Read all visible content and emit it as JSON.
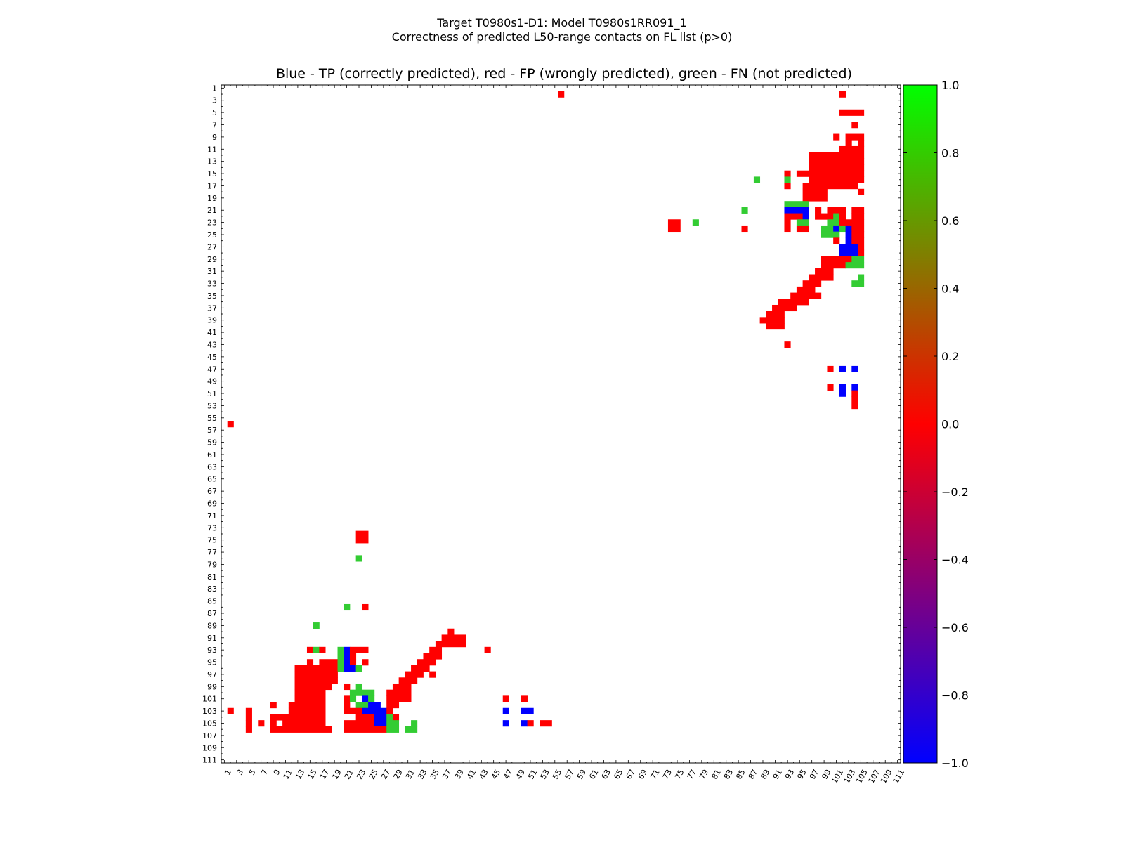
{
  "figure": {
    "suptitle_line1": "Target T0980s1-D1: Model T0980s1RR091_1",
    "suptitle_line2": "Correctness of predicted L50-range contacts on FL list (p>0)"
  },
  "chart_data": {
    "type": "heatmap",
    "title": "Blue - TP (correctly predicted), red - FP (wrongly predicted), green - FN (not predicted)",
    "xlabel": "",
    "ylabel": "",
    "n": 111,
    "x_ticks": [
      1,
      3,
      5,
      7,
      9,
      11,
      13,
      15,
      17,
      19,
      21,
      23,
      25,
      27,
      29,
      31,
      33,
      35,
      37,
      39,
      41,
      43,
      45,
      47,
      49,
      51,
      53,
      55,
      57,
      59,
      61,
      63,
      65,
      67,
      69,
      71,
      73,
      75,
      77,
      79,
      81,
      83,
      85,
      87,
      89,
      91,
      93,
      95,
      97,
      99,
      101,
      103,
      105,
      107,
      109,
      111
    ],
    "y_ticks": [
      1,
      3,
      5,
      7,
      9,
      11,
      13,
      15,
      17,
      19,
      21,
      23,
      25,
      27,
      29,
      31,
      33,
      35,
      37,
      39,
      41,
      43,
      45,
      47,
      49,
      51,
      53,
      55,
      57,
      59,
      61,
      63,
      65,
      67,
      69,
      71,
      73,
      75,
      77,
      79,
      81,
      83,
      85,
      87,
      89,
      91,
      93,
      95,
      97,
      99,
      101,
      103,
      105,
      107,
      109,
      111
    ],
    "colorbar": {
      "range": [
        -1.0,
        1.0
      ],
      "ticks": [
        "1.0",
        "0.8",
        "0.6",
        "0.4",
        "0.2",
        "0.0",
        "−0.2",
        "−0.4",
        "−0.6",
        "−0.8",
        "−1.0"
      ],
      "colors": [
        "#0000ff",
        "#ff0000",
        "#00ff00"
      ]
    },
    "legend": {
      "TP": "blue",
      "FP": "red",
      "FN": "green"
    },
    "cells_note": "row,col_start,col_end,class (TP/FP/FN)",
    "cells": [
      [
        2,
        56,
        56,
        "FP"
      ],
      [
        2,
        102,
        102,
        "FP"
      ],
      [
        5,
        102,
        105,
        "FP"
      ],
      [
        7,
        104,
        104,
        "FP"
      ],
      [
        9,
        101,
        101,
        "FP"
      ],
      [
        9,
        103,
        105,
        "FP"
      ],
      [
        10,
        103,
        103,
        "FP"
      ],
      [
        10,
        105,
        105,
        "FP"
      ],
      [
        11,
        102,
        105,
        "FP"
      ],
      [
        12,
        97,
        105,
        "FP"
      ],
      [
        13,
        97,
        105,
        "FP"
      ],
      [
        14,
        97,
        105,
        "FP"
      ],
      [
        15,
        93,
        93,
        "FP"
      ],
      [
        15,
        95,
        105,
        "FP"
      ],
      [
        16,
        88,
        88,
        "FN"
      ],
      [
        16,
        93,
        93,
        "FN"
      ],
      [
        16,
        97,
        105,
        "FP"
      ],
      [
        17,
        93,
        93,
        "FP"
      ],
      [
        17,
        96,
        104,
        "FP"
      ],
      [
        18,
        96,
        99,
        "FP"
      ],
      [
        18,
        105,
        105,
        "FP"
      ],
      [
        19,
        96,
        99,
        "FP"
      ],
      [
        20,
        93,
        96,
        "FN"
      ],
      [
        21,
        86,
        86,
        "FN"
      ],
      [
        21,
        93,
        96,
        "TP"
      ],
      [
        21,
        98,
        98,
        "FP"
      ],
      [
        21,
        100,
        102,
        "FP"
      ],
      [
        21,
        104,
        105,
        "FP"
      ],
      [
        22,
        93,
        95,
        "FP"
      ],
      [
        22,
        96,
        96,
        "TP"
      ],
      [
        22,
        98,
        100,
        "FP"
      ],
      [
        22,
        101,
        101,
        "FN"
      ],
      [
        22,
        102,
        102,
        "FP"
      ],
      [
        22,
        104,
        105,
        "FP"
      ],
      [
        23,
        74,
        75,
        "FP"
      ],
      [
        23,
        78,
        78,
        "FN"
      ],
      [
        23,
        93,
        93,
        "FP"
      ],
      [
        23,
        95,
        96,
        "FN"
      ],
      [
        23,
        100,
        101,
        "FN"
      ],
      [
        23,
        102,
        105,
        "FP"
      ],
      [
        24,
        74,
        75,
        "FP"
      ],
      [
        24,
        86,
        86,
        "FP"
      ],
      [
        24,
        93,
        93,
        "FP"
      ],
      [
        24,
        95,
        96,
        "FP"
      ],
      [
        24,
        99,
        100,
        "FN"
      ],
      [
        24,
        101,
        101,
        "TP"
      ],
      [
        24,
        102,
        102,
        "FN"
      ],
      [
        24,
        103,
        103,
        "TP"
      ],
      [
        24,
        104,
        105,
        "FP"
      ],
      [
        25,
        99,
        101,
        "FN"
      ],
      [
        25,
        103,
        103,
        "TP"
      ],
      [
        25,
        104,
        105,
        "FP"
      ],
      [
        26,
        101,
        101,
        "FP"
      ],
      [
        26,
        103,
        103,
        "TP"
      ],
      [
        26,
        104,
        105,
        "FP"
      ],
      [
        27,
        102,
        103,
        "TP"
      ],
      [
        27,
        104,
        104,
        "TP"
      ],
      [
        27,
        105,
        105,
        "FP"
      ],
      [
        28,
        102,
        104,
        "TP"
      ],
      [
        28,
        105,
        105,
        "FP"
      ],
      [
        29,
        99,
        102,
        "FP"
      ],
      [
        29,
        103,
        103,
        "FP"
      ],
      [
        29,
        104,
        105,
        "FN"
      ],
      [
        30,
        99,
        102,
        "FP"
      ],
      [
        30,
        103,
        105,
        "FN"
      ],
      [
        31,
        98,
        100,
        "FP"
      ],
      [
        32,
        97,
        100,
        "FP"
      ],
      [
        32,
        105,
        105,
        "FN"
      ],
      [
        33,
        96,
        98,
        "FP"
      ],
      [
        33,
        104,
        105,
        "FN"
      ],
      [
        34,
        95,
        97,
        "FP"
      ],
      [
        35,
        94,
        98,
        "FP"
      ],
      [
        36,
        92,
        96,
        "FP"
      ],
      [
        37,
        91,
        94,
        "FP"
      ],
      [
        38,
        90,
        92,
        "FP"
      ],
      [
        39,
        89,
        92,
        "FP"
      ],
      [
        40,
        90,
        92,
        "FP"
      ],
      [
        43,
        93,
        93,
        "FP"
      ],
      [
        47,
        100,
        100,
        "FP"
      ],
      [
        47,
        102,
        102,
        "TP"
      ],
      [
        47,
        104,
        104,
        "TP"
      ],
      [
        50,
        100,
        100,
        "FP"
      ],
      [
        50,
        102,
        102,
        "TP"
      ],
      [
        50,
        104,
        104,
        "TP"
      ],
      [
        51,
        102,
        102,
        "TP"
      ],
      [
        51,
        104,
        104,
        "FP"
      ],
      [
        52,
        104,
        104,
        "FP"
      ],
      [
        53,
        104,
        104,
        "FP"
      ],
      [
        56,
        2,
        2,
        "FP"
      ],
      [
        74,
        23,
        24,
        "FP"
      ],
      [
        75,
        23,
        24,
        "FP"
      ],
      [
        78,
        23,
        23,
        "FN"
      ],
      [
        86,
        21,
        21,
        "FN"
      ],
      [
        86,
        24,
        24,
        "FP"
      ],
      [
        89,
        16,
        16,
        "FN"
      ],
      [
        90,
        38,
        38,
        "FP"
      ],
      [
        91,
        37,
        40,
        "FP"
      ],
      [
        92,
        36,
        40,
        "FP"
      ],
      [
        93,
        15,
        15,
        "FP"
      ],
      [
        93,
        16,
        16,
        "FN"
      ],
      [
        93,
        17,
        17,
        "FP"
      ],
      [
        93,
        20,
        20,
        "FN"
      ],
      [
        93,
        21,
        21,
        "TP"
      ],
      [
        93,
        22,
        24,
        "FP"
      ],
      [
        93,
        35,
        36,
        "FP"
      ],
      [
        93,
        44,
        44,
        "FP"
      ],
      [
        94,
        20,
        20,
        "FN"
      ],
      [
        94,
        21,
        21,
        "TP"
      ],
      [
        94,
        22,
        22,
        "FP"
      ],
      [
        94,
        34,
        36,
        "FP"
      ],
      [
        95,
        15,
        15,
        "FP"
      ],
      [
        95,
        17,
        19,
        "FP"
      ],
      [
        95,
        20,
        20,
        "FN"
      ],
      [
        95,
        21,
        21,
        "TP"
      ],
      [
        95,
        22,
        22,
        "FP"
      ],
      [
        95,
        24,
        24,
        "FP"
      ],
      [
        95,
        33,
        35,
        "FP"
      ],
      [
        96,
        13,
        19,
        "FP"
      ],
      [
        96,
        20,
        20,
        "FN"
      ],
      [
        96,
        21,
        22,
        "TP"
      ],
      [
        96,
        23,
        23,
        "FN"
      ],
      [
        96,
        32,
        34,
        "FP"
      ],
      [
        97,
        13,
        19,
        "FP"
      ],
      [
        97,
        31,
        33,
        "FP"
      ],
      [
        97,
        35,
        35,
        "FP"
      ],
      [
        98,
        13,
        19,
        "FP"
      ],
      [
        98,
        30,
        32,
        "FP"
      ],
      [
        99,
        13,
        18,
        "FP"
      ],
      [
        99,
        21,
        21,
        "FP"
      ],
      [
        99,
        23,
        23,
        "FN"
      ],
      [
        99,
        29,
        31,
        "FP"
      ],
      [
        100,
        13,
        17,
        "FP"
      ],
      [
        100,
        22,
        25,
        "FN"
      ],
      [
        100,
        28,
        31,
        "FP"
      ],
      [
        101,
        13,
        17,
        "FP"
      ],
      [
        101,
        21,
        21,
        "FP"
      ],
      [
        101,
        22,
        22,
        "FN"
      ],
      [
        101,
        24,
        24,
        "TP"
      ],
      [
        101,
        25,
        25,
        "FN"
      ],
      [
        101,
        28,
        31,
        "FP"
      ],
      [
        101,
        47,
        47,
        "FP"
      ],
      [
        101,
        50,
        50,
        "FP"
      ],
      [
        102,
        9,
        9,
        "FP"
      ],
      [
        102,
        12,
        17,
        "FP"
      ],
      [
        102,
        21,
        21,
        "FP"
      ],
      [
        102,
        23,
        24,
        "FN"
      ],
      [
        102,
        25,
        26,
        "TP"
      ],
      [
        102,
        28,
        29,
        "FP"
      ],
      [
        103,
        2,
        2,
        "FP"
      ],
      [
        103,
        5,
        5,
        "FP"
      ],
      [
        103,
        12,
        17,
        "FP"
      ],
      [
        103,
        21,
        23,
        "FP"
      ],
      [
        103,
        24,
        27,
        "TP"
      ],
      [
        103,
        28,
        28,
        "FP"
      ],
      [
        103,
        47,
        47,
        "TP"
      ],
      [
        103,
        50,
        51,
        "TP"
      ],
      [
        104,
        5,
        5,
        "FP"
      ],
      [
        104,
        9,
        17,
        "FP"
      ],
      [
        104,
        23,
        25,
        "FP"
      ],
      [
        104,
        26,
        27,
        "TP"
      ],
      [
        104,
        28,
        28,
        "FN"
      ],
      [
        104,
        29,
        29,
        "FP"
      ],
      [
        105,
        5,
        5,
        "FP"
      ],
      [
        105,
        7,
        7,
        "FP"
      ],
      [
        105,
        9,
        9,
        "FP"
      ],
      [
        105,
        11,
        17,
        "FP"
      ],
      [
        105,
        21,
        25,
        "FP"
      ],
      [
        105,
        26,
        27,
        "TP"
      ],
      [
        105,
        28,
        29,
        "FN"
      ],
      [
        105,
        32,
        32,
        "FN"
      ],
      [
        105,
        47,
        47,
        "TP"
      ],
      [
        105,
        50,
        50,
        "TP"
      ],
      [
        105,
        51,
        51,
        "FP"
      ],
      [
        105,
        53,
        54,
        "FP"
      ],
      [
        106,
        5,
        5,
        "FP"
      ],
      [
        106,
        9,
        18,
        "FP"
      ],
      [
        106,
        21,
        27,
        "FP"
      ],
      [
        106,
        28,
        29,
        "FN"
      ],
      [
        106,
        31,
        32,
        "FN"
      ]
    ]
  }
}
